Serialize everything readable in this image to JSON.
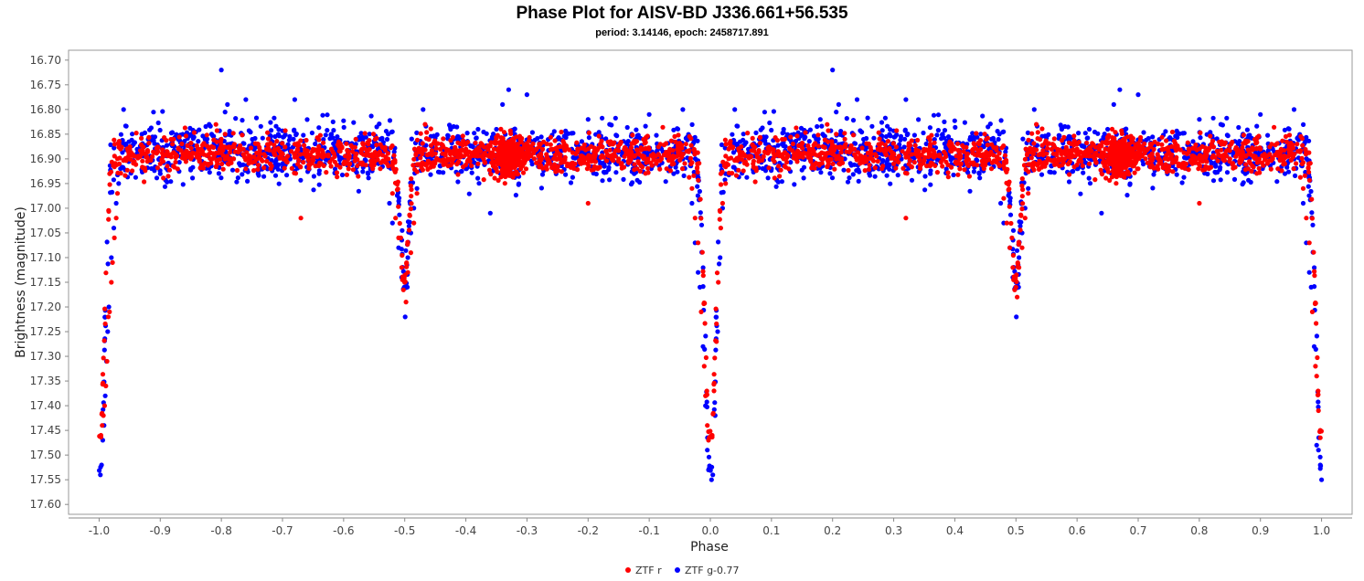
{
  "chart_data": {
    "type": "scatter",
    "title": "Phase Plot for AISV-BD J336.661+56.535",
    "subtitle": "period: 3.14146, epoch: 2458717.891",
    "xlabel": "Phase",
    "ylabel": "Brightness (magnitude)",
    "xlim": [
      -1.05,
      1.05
    ],
    "ylim": [
      17.62,
      16.68
    ],
    "y_inverted": true,
    "x_ticks": [
      "-1.0",
      "-0.9",
      "-0.8",
      "-0.7",
      "-0.6",
      "-0.5",
      "-0.4",
      "-0.3",
      "-0.2",
      "-0.1",
      "0.0",
      "0.1",
      "0.2",
      "0.3",
      "0.4",
      "0.5",
      "0.6",
      "0.7",
      "0.8",
      "0.9",
      "1.0"
    ],
    "y_ticks": [
      "16.70",
      "16.75",
      "16.80",
      "16.85",
      "16.90",
      "16.95",
      "17.00",
      "17.05",
      "17.10",
      "17.15",
      "17.20",
      "17.25",
      "17.30",
      "17.35",
      "17.40",
      "17.45",
      "17.50",
      "17.55",
      "17.60"
    ],
    "grid": false,
    "legend_position": "bottom-center",
    "series": [
      {
        "name": "ZTF r",
        "color": "#ff0000",
        "model": {
          "baseline": 16.89,
          "scatter": 0.03,
          "primary_eclipse": {
            "center": 0.0,
            "depth": 0.6,
            "width": 0.012
          },
          "secondary_eclipse": {
            "center": 0.5,
            "depth": 0.25,
            "width": 0.01
          },
          "dense_cluster_center": -0.33
        },
        "points": [
          [
            -0.997,
            17.46
          ],
          [
            -0.995,
            17.44
          ],
          [
            -0.993,
            17.42
          ],
          [
            -0.991,
            17.4
          ],
          [
            -0.989,
            17.36
          ],
          [
            -0.987,
            17.31
          ],
          [
            -0.985,
            17.22
          ],
          [
            -0.983,
            17.21
          ],
          [
            -0.98,
            17.15
          ],
          [
            -0.978,
            17.11
          ],
          [
            -0.975,
            17.06
          ],
          [
            -0.972,
            17.02
          ],
          [
            -0.97,
            16.97
          ],
          [
            -0.967,
            16.91
          ],
          [
            -0.965,
            16.88
          ],
          [
            -0.95,
            16.88
          ],
          [
            -0.93,
            16.89
          ],
          [
            -0.9,
            16.91
          ],
          [
            -0.88,
            16.87
          ],
          [
            -0.85,
            16.9
          ],
          [
            -0.82,
            16.88
          ],
          [
            -0.8,
            16.86
          ],
          [
            -0.78,
            16.9
          ],
          [
            -0.76,
            16.92
          ],
          [
            -0.74,
            16.87
          ],
          [
            -0.72,
            16.91
          ],
          [
            -0.7,
            16.89
          ],
          [
            -0.68,
            16.87
          ],
          [
            -0.67,
            17.02
          ],
          [
            -0.65,
            16.9
          ],
          [
            -0.62,
            16.88
          ],
          [
            -0.6,
            16.91
          ],
          [
            -0.58,
            16.86
          ],
          [
            -0.56,
            16.89
          ],
          [
            -0.54,
            16.92
          ],
          [
            -0.52,
            16.97
          ],
          [
            -0.515,
            17.02
          ],
          [
            -0.51,
            17.06
          ],
          [
            -0.505,
            17.12
          ],
          [
            -0.5,
            17.15
          ],
          [
            -0.498,
            17.19
          ],
          [
            -0.495,
            17.13
          ],
          [
            -0.49,
            17.09
          ],
          [
            -0.485,
            17.03
          ],
          [
            -0.48,
            16.97
          ],
          [
            -0.46,
            16.89
          ],
          [
            -0.44,
            16.87
          ],
          [
            -0.42,
            16.9
          ],
          [
            -0.4,
            16.88
          ],
          [
            -0.38,
            16.91
          ],
          [
            -0.36,
            16.89
          ],
          [
            -0.34,
            16.93
          ],
          [
            -0.33,
            16.9
          ],
          [
            -0.32,
            16.88
          ],
          [
            -0.31,
            16.92
          ],
          [
            -0.28,
            16.87
          ],
          [
            -0.25,
            16.9
          ],
          [
            -0.22,
            16.89
          ],
          [
            -0.2,
            16.99
          ],
          [
            -0.18,
            16.87
          ],
          [
            -0.15,
            16.9
          ],
          [
            -0.12,
            16.92
          ],
          [
            -0.1,
            16.88
          ],
          [
            -0.08,
            16.9
          ],
          [
            -0.06,
            16.91
          ],
          [
            -0.04,
            16.87
          ],
          [
            -0.03,
            16.96
          ],
          [
            -0.025,
            17.02
          ],
          [
            -0.02,
            17.07
          ],
          [
            -0.015,
            17.21
          ],
          [
            -0.01,
            17.32
          ],
          [
            -0.008,
            17.38
          ],
          [
            -0.005,
            17.44
          ],
          [
            -0.003,
            17.47
          ],
          [
            0.003,
            17.46
          ],
          [
            0.006,
            17.37
          ],
          [
            0.01,
            17.27
          ],
          [
            0.013,
            17.15
          ],
          [
            0.017,
            17.04
          ],
          [
            0.02,
            16.99
          ],
          [
            0.025,
            16.95
          ],
          [
            0.03,
            16.88
          ],
          [
            0.05,
            16.89
          ],
          [
            0.07,
            16.91
          ],
          [
            0.1,
            16.88
          ],
          [
            0.12,
            16.9
          ],
          [
            0.15,
            16.87
          ],
          [
            0.18,
            16.91
          ],
          [
            0.2,
            16.89
          ],
          [
            0.22,
            16.86
          ],
          [
            0.25,
            16.9
          ],
          [
            0.28,
            16.88
          ],
          [
            0.3,
            16.91
          ],
          [
            0.32,
            17.02
          ],
          [
            0.34,
            16.89
          ],
          [
            0.36,
            16.87
          ],
          [
            0.38,
            16.9
          ],
          [
            0.4,
            16.88
          ],
          [
            0.42,
            16.91
          ],
          [
            0.44,
            16.89
          ],
          [
            0.46,
            16.92
          ],
          [
            0.48,
            16.98
          ],
          [
            0.485,
            17.03
          ],
          [
            0.49,
            17.08
          ],
          [
            0.495,
            17.12
          ],
          [
            0.5,
            17.16
          ],
          [
            0.502,
            17.18
          ],
          [
            0.505,
            17.12
          ],
          [
            0.51,
            17.08
          ],
          [
            0.515,
            17.02
          ],
          [
            0.52,
            16.97
          ],
          [
            0.54,
            16.89
          ],
          [
            0.56,
            16.87
          ],
          [
            0.58,
            16.9
          ],
          [
            0.6,
            16.88
          ],
          [
            0.62,
            16.91
          ],
          [
            0.64,
            16.89
          ],
          [
            0.66,
            16.93
          ],
          [
            0.67,
            16.9
          ],
          [
            0.68,
            16.88
          ],
          [
            0.7,
            16.92
          ],
          [
            0.72,
            16.87
          ],
          [
            0.75,
            16.9
          ],
          [
            0.78,
            16.89
          ],
          [
            0.8,
            16.99
          ],
          [
            0.82,
            16.87
          ],
          [
            0.85,
            16.9
          ],
          [
            0.88,
            16.92
          ],
          [
            0.9,
            16.88
          ],
          [
            0.92,
            16.9
          ],
          [
            0.94,
            16.91
          ],
          [
            0.96,
            16.87
          ],
          [
            0.97,
            16.96
          ],
          [
            0.975,
            17.02
          ],
          [
            0.98,
            17.07
          ],
          [
            0.985,
            17.21
          ],
          [
            0.99,
            17.32
          ],
          [
            0.992,
            17.34
          ],
          [
            0.995,
            17.41
          ],
          [
            0.998,
            17.45
          ]
        ]
      },
      {
        "name": "ZTF g-0.77",
        "color": "#0000ff",
        "model": {
          "baseline": 16.885,
          "scatter": 0.04,
          "primary_eclipse": {
            "center": 0.0,
            "depth": 0.67,
            "width": 0.012
          },
          "secondary_eclipse": {
            "center": 0.5,
            "depth": 0.26,
            "width": 0.01
          },
          "dense_cluster_center": -0.33
        },
        "points": [
          [
            -0.998,
            17.54
          ],
          [
            -0.996,
            17.52
          ],
          [
            -0.994,
            17.47
          ],
          [
            -0.992,
            17.44
          ],
          [
            -0.99,
            17.38
          ],
          [
            -0.988,
            17.31
          ],
          [
            -0.986,
            17.25
          ],
          [
            -0.984,
            17.2
          ],
          [
            -0.98,
            17.1
          ],
          [
            -0.976,
            17.04
          ],
          [
            -0.972,
            16.99
          ],
          [
            -0.968,
            16.95
          ],
          [
            -0.965,
            16.92
          ],
          [
            -0.96,
            16.8
          ],
          [
            -0.95,
            16.88
          ],
          [
            -0.93,
            16.85
          ],
          [
            -0.9,
            16.93
          ],
          [
            -0.88,
            16.86
          ],
          [
            -0.85,
            16.92
          ],
          [
            -0.82,
            16.83
          ],
          [
            -0.8,
            16.72
          ],
          [
            -0.79,
            16.79
          ],
          [
            -0.78,
            16.9
          ],
          [
            -0.76,
            16.78
          ],
          [
            -0.74,
            16.93
          ],
          [
            -0.72,
            16.86
          ],
          [
            -0.7,
            16.91
          ],
          [
            -0.68,
            16.78
          ],
          [
            -0.66,
            16.88
          ],
          [
            -0.64,
            16.93
          ],
          [
            -0.62,
            16.85
          ],
          [
            -0.6,
            16.91
          ],
          [
            -0.58,
            16.87
          ],
          [
            -0.56,
            16.93
          ],
          [
            -0.54,
            16.86
          ],
          [
            -0.525,
            16.99
          ],
          [
            -0.52,
            17.03
          ],
          [
            -0.51,
            17.08
          ],
          [
            -0.505,
            17.14
          ],
          [
            -0.5,
            17.15
          ],
          [
            -0.495,
            17.1
          ],
          [
            -0.49,
            17.05
          ],
          [
            -0.485,
            17.0
          ],
          [
            -0.48,
            16.96
          ],
          [
            -0.47,
            16.8
          ],
          [
            -0.45,
            16.88
          ],
          [
            -0.42,
            16.86
          ],
          [
            -0.4,
            16.92
          ],
          [
            -0.38,
            16.84
          ],
          [
            -0.36,
            17.01
          ],
          [
            -0.35,
            16.84
          ],
          [
            -0.34,
            16.79
          ],
          [
            -0.33,
            16.76
          ],
          [
            -0.32,
            16.85
          ],
          [
            -0.3,
            16.77
          ],
          [
            -0.28,
            16.9
          ],
          [
            -0.25,
            16.86
          ],
          [
            -0.22,
            16.92
          ],
          [
            -0.2,
            16.82
          ],
          [
            -0.18,
            16.91
          ],
          [
            -0.15,
            16.87
          ],
          [
            -0.12,
            16.92
          ],
          [
            -0.1,
            16.81
          ],
          [
            -0.08,
            16.88
          ],
          [
            -0.06,
            16.93
          ],
          [
            -0.045,
            16.8
          ],
          [
            -0.03,
            16.99
          ],
          [
            -0.025,
            17.07
          ],
          [
            -0.02,
            17.13
          ],
          [
            -0.017,
            17.16
          ],
          [
            -0.012,
            17.28
          ],
          [
            -0.008,
            17.4
          ],
          [
            -0.005,
            17.49
          ],
          [
            -0.003,
            17.53
          ],
          [
            0.002,
            17.55
          ],
          [
            0.004,
            17.54
          ],
          [
            0.008,
            17.42
          ],
          [
            0.012,
            17.25
          ],
          [
            0.016,
            17.1
          ],
          [
            0.02,
            17.0
          ],
          [
            0.025,
            16.93
          ],
          [
            0.04,
            16.8
          ],
          [
            0.05,
            16.88
          ],
          [
            0.08,
            16.86
          ],
          [
            0.1,
            16.92
          ],
          [
            0.12,
            16.84
          ],
          [
            0.15,
            16.9
          ],
          [
            0.18,
            16.82
          ],
          [
            0.2,
            16.72
          ],
          [
            0.21,
            16.79
          ],
          [
            0.22,
            16.9
          ],
          [
            0.24,
            16.78
          ],
          [
            0.26,
            16.93
          ],
          [
            0.28,
            16.86
          ],
          [
            0.3,
            16.91
          ],
          [
            0.32,
            16.78
          ],
          [
            0.34,
            16.88
          ],
          [
            0.36,
            16.93
          ],
          [
            0.38,
            16.85
          ],
          [
            0.4,
            16.91
          ],
          [
            0.42,
            16.87
          ],
          [
            0.44,
            16.93
          ],
          [
            0.46,
            16.86
          ],
          [
            0.475,
            16.99
          ],
          [
            0.48,
            17.03
          ],
          [
            0.49,
            17.08
          ],
          [
            0.495,
            17.14
          ],
          [
            0.5,
            17.15
          ],
          [
            0.505,
            17.1
          ],
          [
            0.51,
            17.05
          ],
          [
            0.515,
            17.0
          ],
          [
            0.52,
            16.96
          ],
          [
            0.53,
            16.8
          ],
          [
            0.55,
            16.88
          ],
          [
            0.58,
            16.86
          ],
          [
            0.6,
            16.92
          ],
          [
            0.62,
            16.84
          ],
          [
            0.64,
            17.01
          ],
          [
            0.65,
            16.84
          ],
          [
            0.66,
            16.79
          ],
          [
            0.67,
            16.76
          ],
          [
            0.68,
            16.85
          ],
          [
            0.7,
            16.77
          ],
          [
            0.72,
            16.9
          ],
          [
            0.75,
            16.86
          ],
          [
            0.78,
            16.92
          ],
          [
            0.8,
            16.82
          ],
          [
            0.82,
            16.91
          ],
          [
            0.85,
            16.87
          ],
          [
            0.88,
            16.92
          ],
          [
            0.9,
            16.81
          ],
          [
            0.92,
            16.88
          ],
          [
            0.94,
            16.93
          ],
          [
            0.955,
            16.8
          ],
          [
            0.97,
            16.99
          ],
          [
            0.975,
            17.07
          ],
          [
            0.98,
            17.13
          ],
          [
            0.983,
            17.16
          ],
          [
            0.988,
            17.28
          ],
          [
            0.992,
            17.48
          ],
          [
            0.995,
            17.49
          ],
          [
            0.998,
            17.52
          ],
          [
            1.0,
            17.55
          ]
        ]
      }
    ]
  }
}
